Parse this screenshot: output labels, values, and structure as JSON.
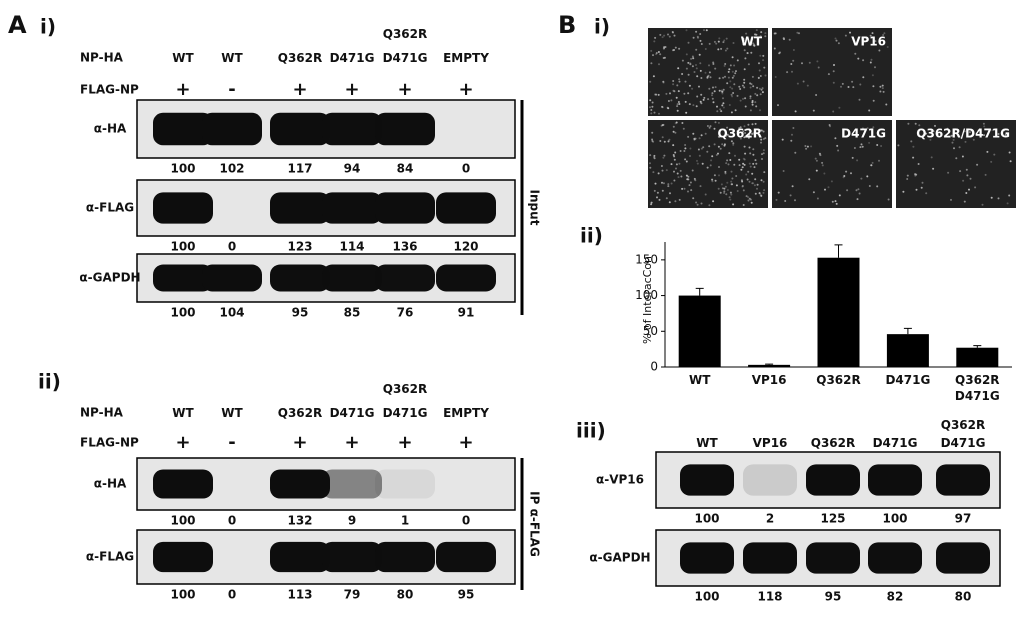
{
  "panel_A": {
    "label": "A",
    "i": {
      "label": "i)",
      "row_labels": [
        "NP-HA",
        "FLAG-NP"
      ],
      "np_ha": [
        "WT",
        "WT",
        "Q362R",
        "D471G",
        "Q362R D471G",
        "EMPTY"
      ],
      "flag_np": [
        "+",
        "-",
        "+",
        "+",
        "+",
        "+"
      ],
      "blots": [
        {
          "label": "α-HA",
          "quant": [
            100,
            102,
            117,
            94,
            84,
            0
          ]
        },
        {
          "label": "α-FLAG",
          "quant": [
            100,
            0,
            123,
            114,
            136,
            120
          ]
        },
        {
          "label": "α-GAPDH",
          "quant": [
            100,
            104,
            95,
            85,
            76,
            91
          ]
        }
      ],
      "side_label": "Input"
    },
    "ii": {
      "label": "ii)",
      "row_labels": [
        "NP-HA",
        "FLAG-NP"
      ],
      "np_ha": [
        "WT",
        "WT",
        "Q362R",
        "D471G",
        "Q362R D471G",
        "EMPTY"
      ],
      "flag_np": [
        "+",
        "-",
        "+",
        "+",
        "+",
        "+"
      ],
      "blots": [
        {
          "label": "α-HA",
          "quant": [
            100,
            0,
            132,
            9,
            1,
            0
          ]
        },
        {
          "label": "α-FLAG",
          "quant": [
            100,
            0,
            113,
            79,
            80,
            95
          ]
        }
      ],
      "side_label": "IP α-FLAG"
    }
  },
  "panel_B": {
    "label": "B",
    "i": {
      "label": "i)",
      "images": [
        "WT",
        "VP16",
        "Q362R",
        "D471G",
        "Q362R/D471G"
      ]
    },
    "ii": {
      "label": "ii)"
    },
    "iii": {
      "label": "iii)",
      "lanes": [
        "WT",
        "VP16",
        "Q362R",
        "D471G",
        "Q362R D471G"
      ],
      "blots": [
        {
          "label": "α-VP16",
          "quant": [
            100,
            2,
            125,
            100,
            97
          ]
        },
        {
          "label": "α-GAPDH",
          "quant": [
            100,
            118,
            95,
            82,
            80
          ]
        }
      ]
    }
  },
  "chart_data": {
    "type": "bar",
    "y_label": "% of InteracCon",
    "categories": [
      "WT",
      "VP16",
      "Q362R",
      "D471G",
      "Q362R D471G"
    ],
    "values": [
      100,
      3,
      153,
      46,
      27
    ],
    "errors": [
      10,
      1,
      18,
      8,
      3
    ],
    "color": "#000000",
    "ylim": [
      0,
      175
    ],
    "yticks": [
      0,
      50,
      100,
      150
    ]
  }
}
